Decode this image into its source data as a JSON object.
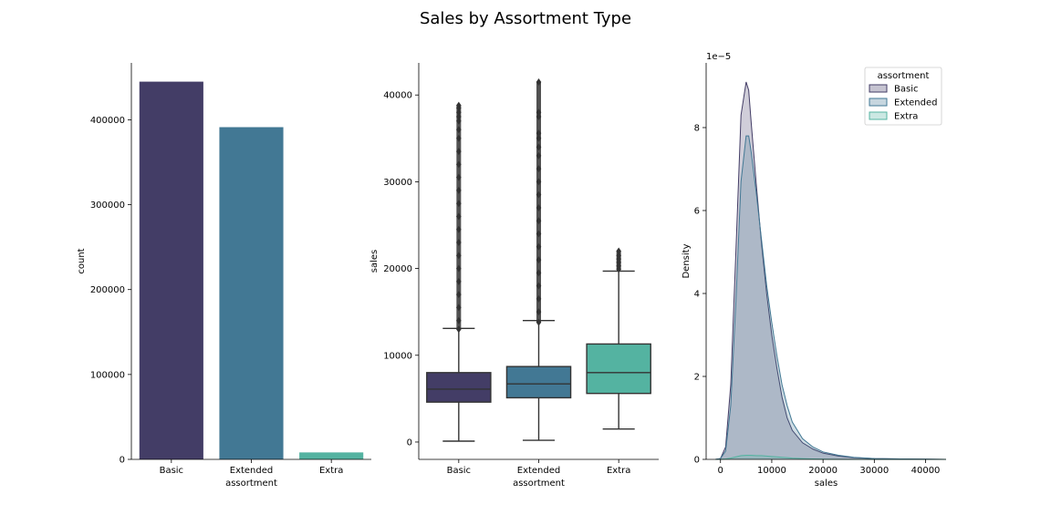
{
  "title": "Sales by Assortment Type",
  "palette": {
    "Basic": "#433d66",
    "Extended": "#427894",
    "Extra": "#54b3a1",
    "outline": "#333333"
  },
  "chart_data": [
    {
      "type": "bar",
      "categories": [
        "Basic",
        "Extended",
        "Extra"
      ],
      "values": [
        444900,
        391300,
        8200
      ],
      "xlabel": "assortment",
      "ylabel": "count",
      "ylim": [
        0,
        467000
      ],
      "yticks": [
        0,
        100000,
        200000,
        300000,
        400000
      ],
      "ytick_labels": [
        "0",
        "100000",
        "200000",
        "300000",
        "400000"
      ],
      "grid": false
    },
    {
      "type": "box",
      "categories": [
        "Basic",
        "Extended",
        "Extra"
      ],
      "boxes": [
        {
          "name": "Basic",
          "whisker_low": 100,
          "q1": 4600,
          "median": 6100,
          "q3": 8000,
          "whisker_high": 13100,
          "outliers": [
            13000,
            14000,
            15500,
            17000,
            18500,
            20000,
            21500,
            23000,
            24500,
            26000,
            27500,
            29000,
            30500,
            32000,
            33500,
            35000,
            36000,
            37000,
            37500,
            38000,
            38500,
            38800
          ]
        },
        {
          "name": "Extended",
          "whisker_low": 200,
          "q1": 5100,
          "median": 6700,
          "q3": 8700,
          "whisker_high": 14000,
          "outliers": [
            13800,
            15000,
            16500,
            18000,
            19500,
            21000,
            22500,
            24000,
            25500,
            27000,
            28500,
            30000,
            31500,
            33000,
            34000,
            35000,
            35600,
            37500,
            38000,
            41500
          ]
        },
        {
          "name": "Extra",
          "whisker_low": 1500,
          "q1": 5600,
          "median": 8000,
          "q3": 11300,
          "whisker_high": 19700,
          "outliers": [
            19900,
            20300,
            20700,
            21100,
            21500,
            22000
          ]
        }
      ],
      "xlabel": "assortment",
      "ylabel": "sales",
      "ylim": [
        -2000,
        43700
      ],
      "yticks": [
        0,
        10000,
        20000,
        30000,
        40000
      ],
      "ytick_labels": [
        "0",
        "10000",
        "20000",
        "30000",
        "40000"
      ],
      "grid": false
    },
    {
      "type": "area",
      "x": [
        -1000,
        0,
        1000,
        2000,
        3000,
        4000,
        5000,
        5500,
        6000,
        7000,
        8000,
        9000,
        10000,
        11000,
        12000,
        13000,
        14000,
        16000,
        18000,
        20000,
        23000,
        26000,
        30000,
        35000,
        40000,
        44000
      ],
      "series": [
        {
          "name": "Basic",
          "values": [
            0,
            0.02,
            0.3,
            1.8,
            5.0,
            8.3,
            9.1,
            8.9,
            8.1,
            6.6,
            5.2,
            4.0,
            3.0,
            2.2,
            1.5,
            1.0,
            0.7,
            0.4,
            0.25,
            0.15,
            0.08,
            0.04,
            0.02,
            0.01,
            0.005,
            0
          ]
        },
        {
          "name": "Extended",
          "values": [
            0,
            0.02,
            0.2,
            1.3,
            3.8,
            6.7,
            7.8,
            7.8,
            7.4,
            6.4,
            5.3,
            4.2,
            3.3,
            2.5,
            1.8,
            1.3,
            0.9,
            0.5,
            0.3,
            0.18,
            0.1,
            0.05,
            0.02,
            0.01,
            0.005,
            0
          ]
        },
        {
          "name": "Extra",
          "values": [
            0,
            0,
            0.01,
            0.03,
            0.06,
            0.09,
            0.1,
            0.1,
            0.1,
            0.09,
            0.09,
            0.08,
            0.07,
            0.06,
            0.05,
            0.04,
            0.03,
            0.02,
            0.01,
            0.005,
            0,
            0,
            0,
            0,
            0,
            0
          ]
        }
      ],
      "xlabel": "sales",
      "ylabel": "Density",
      "offset_text": "1e−5",
      "xlim": [
        -2800,
        44000
      ],
      "ylim": [
        0,
        9.56
      ],
      "xticks": [
        0,
        10000,
        20000,
        30000,
        40000
      ],
      "xtick_labels": [
        "0",
        "10000",
        "20000",
        "30000",
        "40000"
      ],
      "yticks": [
        0,
        2,
        4,
        6,
        8
      ],
      "ytick_labels": [
        "0",
        "2",
        "4",
        "6",
        "8"
      ],
      "legend": {
        "title": "assortment",
        "placement": "top-right",
        "entries": [
          "Basic",
          "Extended",
          "Extra"
        ]
      },
      "grid": false
    }
  ]
}
